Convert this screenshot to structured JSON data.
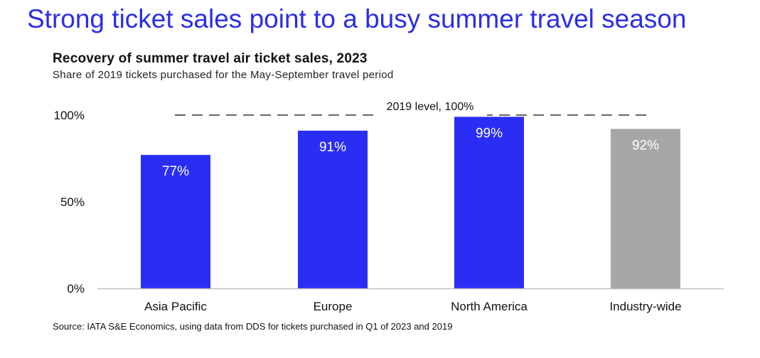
{
  "headline": "Strong ticket sales point to a busy summer travel season",
  "source": "Source: IATA S&E Economics, using data from DDS for tickets purchased in Q1 of 2023 and 2019",
  "colors": {
    "accent": "#2a2ee6",
    "bar_primary": "#2a2ef5",
    "bar_secondary": "#a6a6a6",
    "axis": "#bfbfbf",
    "reference_line": "#333333"
  },
  "chart_data": {
    "type": "bar",
    "title": "Recovery of summer travel air ticket sales, 2023",
    "subtitle": "Share of 2019 tickets purchased for the May-September travel period",
    "categories": [
      "Asia Pacific",
      "Europe",
      "North America",
      "Industry-wide"
    ],
    "values": [
      77,
      91,
      99,
      92
    ],
    "data_labels": [
      "77%",
      "91%",
      "99%",
      "92%"
    ],
    "bar_colors": [
      "#2a2ef5",
      "#2a2ef5",
      "#2a2ef5",
      "#a6a6a6"
    ],
    "xlabel": "",
    "ylabel": "",
    "ylim": [
      0,
      100
    ],
    "yticks": [
      0,
      50,
      100
    ],
    "ytick_labels": [
      "0%",
      "50%",
      "100%"
    ],
    "grid": false,
    "reference_line": {
      "value": 100,
      "label": "2019 level, 100%",
      "style": "dashed"
    }
  }
}
